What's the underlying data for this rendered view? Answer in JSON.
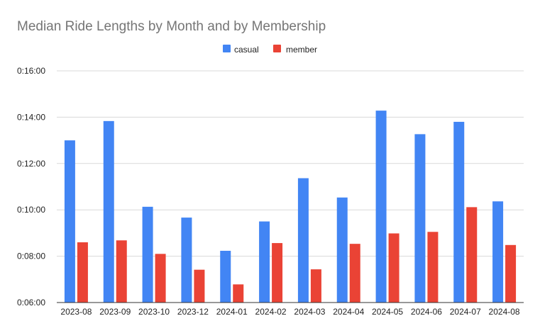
{
  "chart_data": {
    "type": "bar",
    "title": "Median Ride Lengths by Month and by Membership",
    "xlabel": "",
    "ylabel": "",
    "categories": [
      "2023-08",
      "2023-09",
      "2023-10",
      "2023-12",
      "2024-01",
      "2024-02",
      "2024-03",
      "2024-04",
      "2024-05",
      "2024-06",
      "2024-07",
      "2024-08"
    ],
    "series": [
      {
        "name": "casual",
        "color": "#4285f4",
        "values": [
          780,
          830,
          608,
          580,
          494,
          570,
          682,
          632,
          857,
          796,
          828,
          622
        ]
      },
      {
        "name": "member",
        "color": "#ea4335",
        "values": [
          516,
          521,
          486,
          445,
          407,
          514,
          446,
          512,
          539,
          543,
          607,
          509
        ]
      }
    ],
    "ylim": [
      360,
      960
    ],
    "yticks": [
      360,
      480,
      600,
      720,
      840,
      960
    ],
    "ytick_labels": [
      "0:06:00",
      "0:08:00",
      "0:10:00",
      "0:12:00",
      "0:14:00",
      "0:16:00"
    ],
    "grid": true,
    "legend": "top-center"
  }
}
